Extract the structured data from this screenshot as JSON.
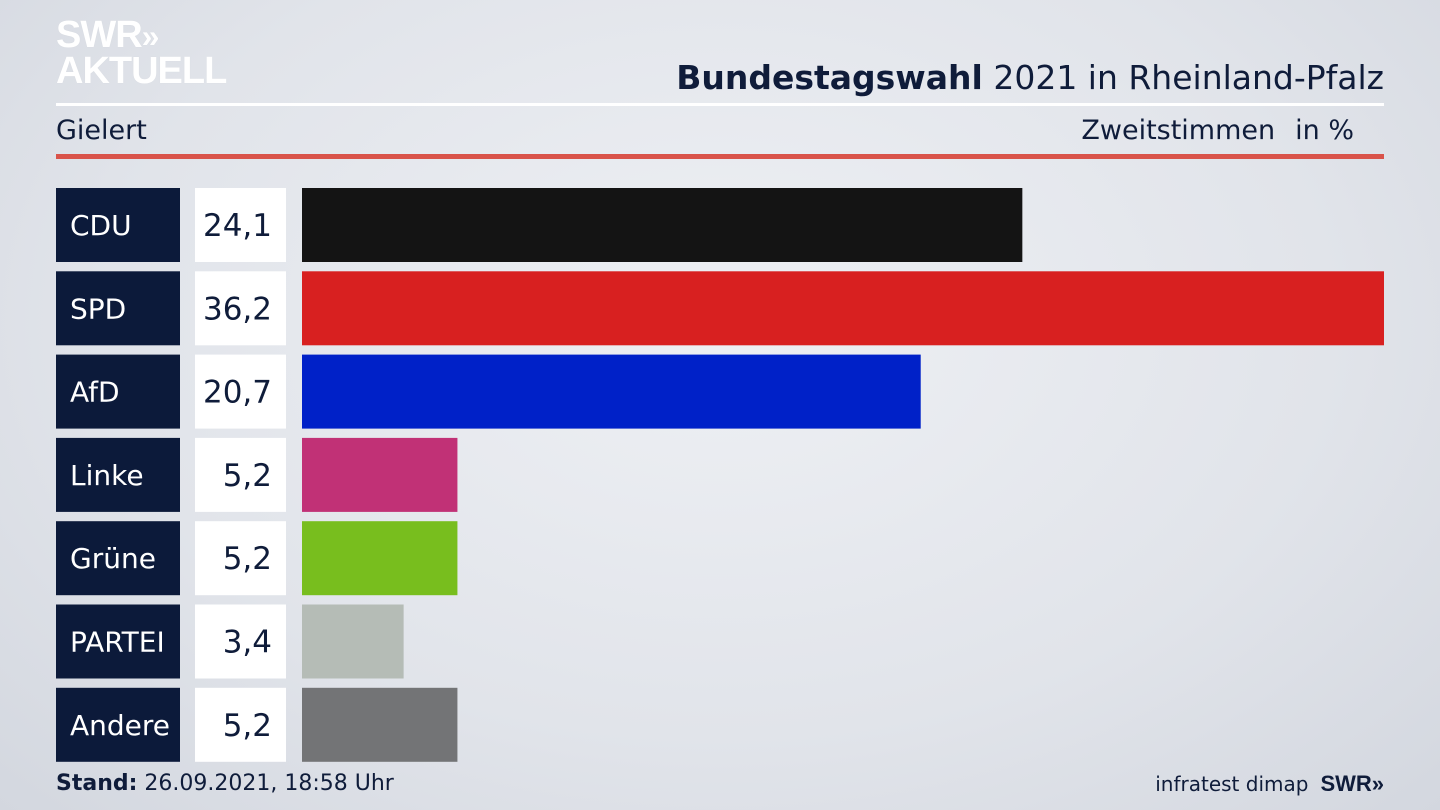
{
  "brand": {
    "logo_line1": "SWR",
    "logo_chevrons": "»",
    "logo_line2": "AKTUELL"
  },
  "header": {
    "title_bold": "Bundestagswahl",
    "title_rest": " 2021 in Rheinland-Pfalz",
    "subtitle_left": "Gielert",
    "subtitle_metric": "Zweitstimmen",
    "subtitle_unit": "in %"
  },
  "footer": {
    "stand_label": "Stand:",
    "stand_value": "26.09.2021, 18:58 Uhr",
    "source": "infratest dimap",
    "source_brand": "SWR»"
  },
  "chart_data": {
    "type": "bar",
    "orientation": "horizontal",
    "categories": [
      "CDU",
      "SPD",
      "AfD",
      "Linke",
      "Grüne",
      "PARTEI",
      "Andere"
    ],
    "values": [
      24.1,
      36.2,
      20.7,
      5.2,
      5.2,
      3.4,
      5.2
    ],
    "value_labels": [
      "24,1",
      "36,2",
      "20,7",
      "5,2",
      "5,2",
      "3,4",
      "5,2"
    ],
    "colors": [
      "#141414",
      "#d82020",
      "#0021c8",
      "#c13176",
      "#78be1e",
      "#b5bcb6",
      "#737476"
    ],
    "xlim": [
      0,
      36.2
    ],
    "grid": false
  },
  "colors": {
    "label_bg": "#0c1a3a",
    "value_bg": "#ffffff",
    "accent_rule": "#d9534a",
    "text": "#0f1c3a"
  }
}
